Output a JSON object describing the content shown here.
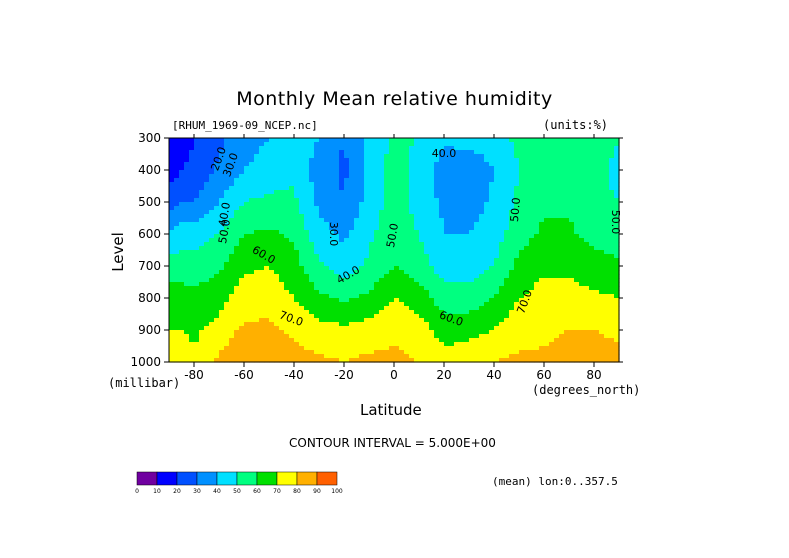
{
  "chart_data": {
    "type": "heatmap",
    "title": "Monthly Mean relative humidity",
    "dataset_label": "[RHUM_1969-09_NCEP.nc]",
    "units_label": "(units:%)",
    "xlabel": "Latitude",
    "x_unit_label": "(degrees_north)",
    "ylabel": "Level",
    "y_unit_label": "(millibar)",
    "xlim": [
      -90,
      90
    ],
    "ylim": [
      1000,
      300
    ],
    "x_ticks": [
      -80,
      -60,
      -40,
      -20,
      0,
      20,
      40,
      60,
      80
    ],
    "x_tick_labels": [
      "-80",
      "-60",
      "-40",
      "-20",
      "0",
      "20",
      "40",
      "60",
      "80"
    ],
    "y_ticks": [
      300,
      400,
      500,
      600,
      700,
      800,
      900,
      1000
    ],
    "y_tick_labels": [
      "300",
      "400",
      "500",
      "600",
      "700",
      "800",
      "900",
      "1000"
    ],
    "contour_interval_label": "CONTOUR INTERVAL = 5.000E+00",
    "mean_label": "(mean) lon:0..357.5",
    "contour_labels": [
      "20.0",
      "30.0",
      "40.0",
      "50.0",
      "60.0",
      "70.0",
      "30.0",
      "40.0",
      "50.0",
      "40.0",
      "60.0",
      "70.0",
      "50.0",
      "50.0"
    ],
    "colorbar": {
      "levels": [
        0,
        10,
        20,
        30,
        40,
        50,
        60,
        70,
        80,
        90,
        100
      ],
      "labels": [
        "0",
        "10",
        "20",
        "30",
        "40",
        "50",
        "60",
        "70",
        "80",
        "90",
        "100"
      ],
      "colors": [
        "#7000a0",
        "#0000ff",
        "#0050ff",
        "#0090ff",
        "#00e0ff",
        "#00ff80",
        "#00e000",
        "#ffff00",
        "#ffb000",
        "#ff6000",
        "#ff0000"
      ]
    },
    "levels_pressure": [
      300,
      400,
      500,
      600,
      700,
      800,
      900,
      1000
    ],
    "profile_latitudes": [
      -90,
      -85,
      -80,
      -70,
      -60,
      -50,
      -40,
      -30,
      -20,
      -10,
      0,
      10,
      20,
      30,
      40,
      50,
      60,
      70,
      80,
      90
    ],
    "profiles": [
      [
        10,
        15,
        25,
        40,
        55,
        65,
        70,
        72
      ],
      [
        15,
        20,
        30,
        45,
        55,
        65,
        70,
        75
      ],
      [
        20,
        22,
        30,
        45,
        55,
        62,
        68,
        72
      ],
      [
        28,
        32,
        40,
        50,
        58,
        66,
        74,
        82
      ],
      [
        35,
        40,
        50,
        60,
        68,
        75,
        82,
        88
      ],
      [
        40,
        45,
        52,
        62,
        70,
        76,
        82,
        85
      ],
      [
        45,
        48,
        52,
        58,
        64,
        70,
        78,
        84
      ],
      [
        40,
        35,
        38,
        44,
        52,
        62,
        74,
        82
      ],
      [
        30,
        28,
        30,
        38,
        45,
        58,
        72,
        80
      ],
      [
        42,
        42,
        44,
        48,
        52,
        62,
        75,
        82
      ],
      [
        52,
        55,
        55,
        56,
        60,
        70,
        78,
        82
      ],
      [
        50,
        45,
        46,
        50,
        55,
        65,
        75,
        80
      ],
      [
        42,
        35,
        38,
        40,
        45,
        55,
        65,
        75
      ],
      [
        44,
        32,
        35,
        40,
        45,
        55,
        66,
        78
      ],
      [
        46,
        40,
        42,
        45,
        50,
        60,
        70,
        80
      ],
      [
        52,
        50,
        52,
        56,
        63,
        70,
        76,
        82
      ],
      [
        56,
        54,
        58,
        62,
        68,
        74,
        78,
        82
      ],
      [
        58,
        56,
        58,
        62,
        68,
        74,
        80,
        84
      ],
      [
        54,
        52,
        52,
        56,
        64,
        72,
        80,
        86
      ],
      [
        50,
        48,
        50,
        55,
        62,
        70,
        78,
        82
      ]
    ]
  }
}
